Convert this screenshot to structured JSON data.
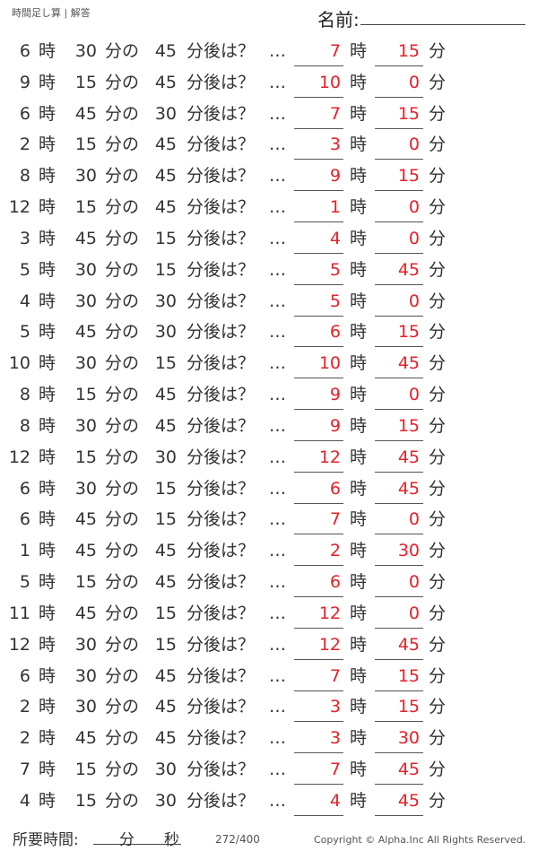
{
  "header": {
    "title": "時間足し算 | 解答",
    "name_label": "名前:"
  },
  "labels": {
    "hour": "時",
    "minute_of": "分の",
    "after": "分後は？",
    "dots": "…",
    "minute": "分"
  },
  "rows": [
    [
      "6",
      "30",
      "45",
      "7",
      "15"
    ],
    [
      "9",
      "15",
      "45",
      "10",
      "0"
    ],
    [
      "6",
      "45",
      "30",
      "7",
      "15"
    ],
    [
      "2",
      "15",
      "45",
      "3",
      "0"
    ],
    [
      "8",
      "30",
      "45",
      "9",
      "15"
    ],
    [
      "12",
      "15",
      "45",
      "1",
      "0"
    ],
    [
      "3",
      "45",
      "15",
      "4",
      "0"
    ],
    [
      "5",
      "30",
      "15",
      "5",
      "45"
    ],
    [
      "4",
      "30",
      "30",
      "5",
      "0"
    ],
    [
      "5",
      "45",
      "30",
      "6",
      "15"
    ],
    [
      "10",
      "30",
      "15",
      "10",
      "45"
    ],
    [
      "8",
      "15",
      "45",
      "9",
      "0"
    ],
    [
      "8",
      "30",
      "45",
      "9",
      "15"
    ],
    [
      "12",
      "15",
      "30",
      "12",
      "45"
    ],
    [
      "6",
      "30",
      "15",
      "6",
      "45"
    ],
    [
      "6",
      "45",
      "15",
      "7",
      "0"
    ],
    [
      "1",
      "45",
      "45",
      "2",
      "30"
    ],
    [
      "5",
      "15",
      "45",
      "6",
      "0"
    ],
    [
      "11",
      "45",
      "15",
      "12",
      "0"
    ],
    [
      "12",
      "30",
      "15",
      "12",
      "45"
    ],
    [
      "6",
      "30",
      "45",
      "7",
      "15"
    ],
    [
      "2",
      "30",
      "45",
      "3",
      "15"
    ],
    [
      "2",
      "45",
      "45",
      "3",
      "30"
    ],
    [
      "7",
      "15",
      "30",
      "7",
      "45"
    ],
    [
      "4",
      "15",
      "30",
      "4",
      "45"
    ]
  ],
  "footer": {
    "time_label": "所要時間:",
    "min": "分",
    "sec": "秒",
    "page": "272/400",
    "copyright": "Copyright ©  Alpha.Inc All Rights Reserved."
  },
  "colors": {
    "answer": "#e8202a"
  }
}
